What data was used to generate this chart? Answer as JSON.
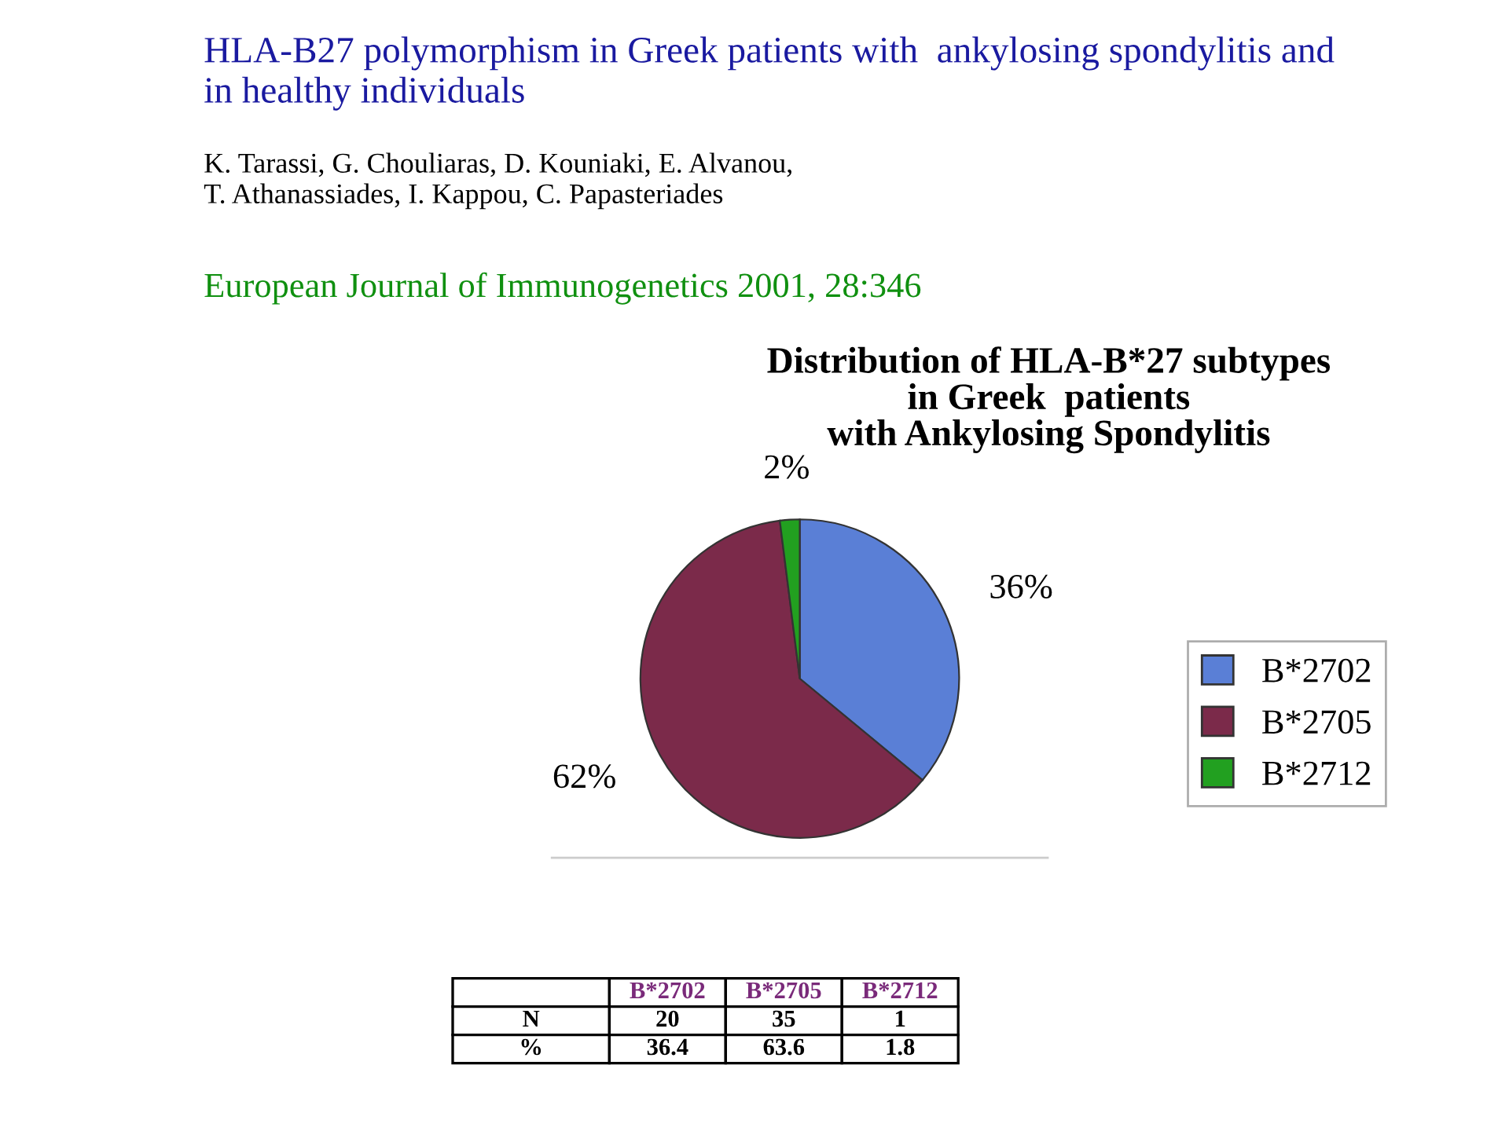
{
  "chart_data": [
    {
      "type": "pie",
      "title": "Distribution of HLA-B*27 subtypes\nin Greek  patients\nwith Ankylosing Spondylitis",
      "categories": [
        "B*2702",
        "B*2705",
        "B*2712"
      ],
      "values": [
        36,
        62,
        2
      ],
      "colors": [
        "#5a7fd6",
        "#7b2a4a",
        "#22a020"
      ],
      "value_labels": [
        "36%",
        "62%",
        "2%"
      ],
      "legend": "right",
      "annotations": [
        "HLA-B27 polymorphism in Greek patients with  ankylosing spondylitis and\nin healthy individuals",
        "K. Tarassi, G. Chouliaras, D. Kouniaki, E. Alvanou,\nT. Athanassiades, I. Kappou, C. Papasteriades",
        "European Journal of Immunogenetics 2001, 28:346"
      ]
    },
    {
      "type": "other",
      "categories": [
        "B*2702",
        "B*2705",
        "B*2712"
      ],
      "series": [
        {
          "name": "N",
          "values": [
            20,
            35,
            1
          ]
        },
        {
          "name": "%",
          "values": [
            36.4,
            63.6,
            1.8
          ]
        }
      ],
      "data_labels": true
    }
  ]
}
